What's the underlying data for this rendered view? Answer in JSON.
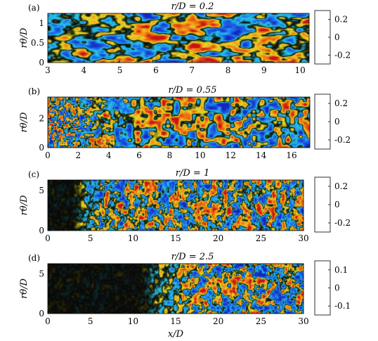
{
  "chart_data": [
    {
      "type": "heatmap",
      "panel_label": "(a)",
      "title": "r/D = 0.2",
      "ylabel": "rθ/D",
      "xlabel": "",
      "xlim": [
        3,
        10.25
      ],
      "ylim": [
        0,
        1.25
      ],
      "xticks": [
        3,
        4,
        5,
        6,
        7,
        8,
        9,
        10
      ],
      "yticks": [
        0,
        0.5,
        1
      ],
      "colorbar_ticks": [
        0.2,
        0,
        -0.2
      ],
      "colorbar_tick_labels": [
        "0.2",
        "0",
        "-0.2"
      ],
      "clim": [
        -0.3,
        0.3
      ],
      "colormap": "blue-cyan-black-yellow-red",
      "dark_region_until_x": 3
    },
    {
      "type": "heatmap",
      "panel_label": "(b)",
      "title": "r/D = 0.55",
      "ylabel": "rθ/D",
      "xlabel": "",
      "xlim": [
        0,
        17.2
      ],
      "ylim": [
        0,
        3.45
      ],
      "xticks": [
        0,
        2,
        4,
        6,
        8,
        10,
        12,
        14,
        16
      ],
      "yticks": [
        0,
        2
      ],
      "colorbar_ticks": [
        0.2,
        0,
        -0.2
      ],
      "colorbar_tick_labels": [
        "0.2",
        "0",
        "-0.2"
      ],
      "clim": [
        -0.3,
        0.3
      ],
      "colormap": "blue-cyan-black-yellow-red",
      "dark_region_until_x": 0
    },
    {
      "type": "heatmap",
      "panel_label": "(c)",
      "title": "r/D = 1",
      "ylabel": "rθ/D",
      "xlabel": "",
      "xlim": [
        0,
        30
      ],
      "ylim": [
        0,
        6.3
      ],
      "xticks": [
        0,
        5,
        10,
        15,
        20,
        25,
        30
      ],
      "yticks": [
        0,
        5
      ],
      "colorbar_ticks": [
        0.2,
        0,
        -0.2
      ],
      "colorbar_tick_labels": [
        "0.2",
        "0",
        "-0.2"
      ],
      "clim": [
        -0.3,
        0.3
      ],
      "colormap": "blue-cyan-black-yellow-red",
      "dark_region_until_x": 3
    },
    {
      "type": "heatmap",
      "panel_label": "(d)",
      "title": "r/D = 2.5",
      "ylabel": "rθ/D",
      "xlabel": "x/D",
      "xlim": [
        0,
        30
      ],
      "ylim": [
        0,
        6.3
      ],
      "xticks": [
        0,
        5,
        10,
        15,
        20,
        25,
        30
      ],
      "yticks": [
        0,
        5
      ],
      "colorbar_ticks": [
        0.1,
        0,
        -0.1
      ],
      "colorbar_tick_labels": [
        "0.1",
        "0",
        "-0.1"
      ],
      "clim": [
        -0.15,
        0.15
      ],
      "colormap": "blue-cyan-black-yellow-red",
      "dark_region_until_x": 11
    }
  ]
}
